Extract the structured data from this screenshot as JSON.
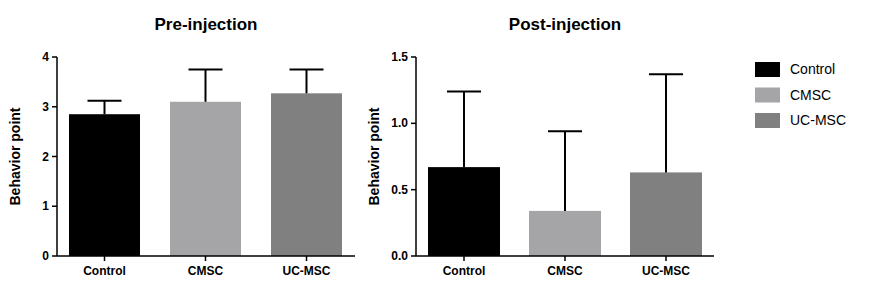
{
  "chart_data": [
    {
      "type": "bar",
      "title": "Pre-injection",
      "y_label": "Behavior point",
      "categories": [
        "Control",
        "CMSC",
        "UC-MSC"
      ],
      "values": [
        2.85,
        3.1,
        3.27
      ],
      "errors": [
        0.27,
        0.65,
        0.48
      ],
      "colors": [
        "#000000",
        "#a5a5a8",
        "#808080"
      ],
      "ylim": [
        0,
        4
      ],
      "yticks": [
        0,
        1,
        2,
        3,
        4
      ],
      "grid": false
    },
    {
      "type": "bar",
      "title": "Post-injection",
      "y_label": "Behavior point",
      "categories": [
        "Control",
        "CMSC",
        "UC-MSC"
      ],
      "values": [
        0.67,
        0.34,
        0.63
      ],
      "errors": [
        0.57,
        0.6,
        0.74
      ],
      "colors": [
        "#000000",
        "#a5a5a8",
        "#808080"
      ],
      "ylim": [
        0,
        1.5
      ],
      "yticks": [
        {
          "value": 0,
          "label": "0.0"
        },
        {
          "value": 0.5,
          "label": "0.5"
        },
        {
          "value": 1,
          "label": "1.0"
        },
        {
          "value": 1.5,
          "label": "1.5"
        }
      ],
      "grid": false,
      "legend": "right"
    }
  ]
}
